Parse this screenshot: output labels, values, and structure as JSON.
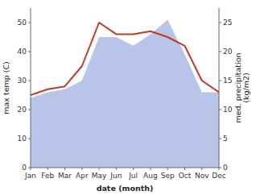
{
  "chart_data": {
    "type": "line",
    "categories": [
      "Jan",
      "Feb",
      "Mar",
      "Apr",
      "May",
      "Jun",
      "Jul",
      "Aug",
      "Sep",
      "Oct",
      "Nov",
      "Dec"
    ],
    "xlabel": "date (month)",
    "ylabel": "max temp (C)",
    "y2label": "med. precipitation\n(kg/m2)",
    "ylim": [
      0,
      55
    ],
    "yticks": [
      0,
      10,
      20,
      30,
      40,
      50
    ],
    "y2lim": [
      0,
      27.5
    ],
    "y2ticks": [
      0,
      5,
      10,
      15,
      20,
      25
    ],
    "series": [
      {
        "type": "area",
        "axis": "y2",
        "color": "#b8c4e8",
        "values": [
          12,
          13,
          13.5,
          15,
          22.5,
          22.5,
          21,
          23,
          25.5,
          19.5,
          13,
          13
        ]
      },
      {
        "type": "line",
        "color": "#c0392b",
        "values": [
          25,
          27,
          28,
          35,
          50,
          46,
          46,
          47,
          45,
          42,
          30,
          26
        ]
      }
    ]
  }
}
